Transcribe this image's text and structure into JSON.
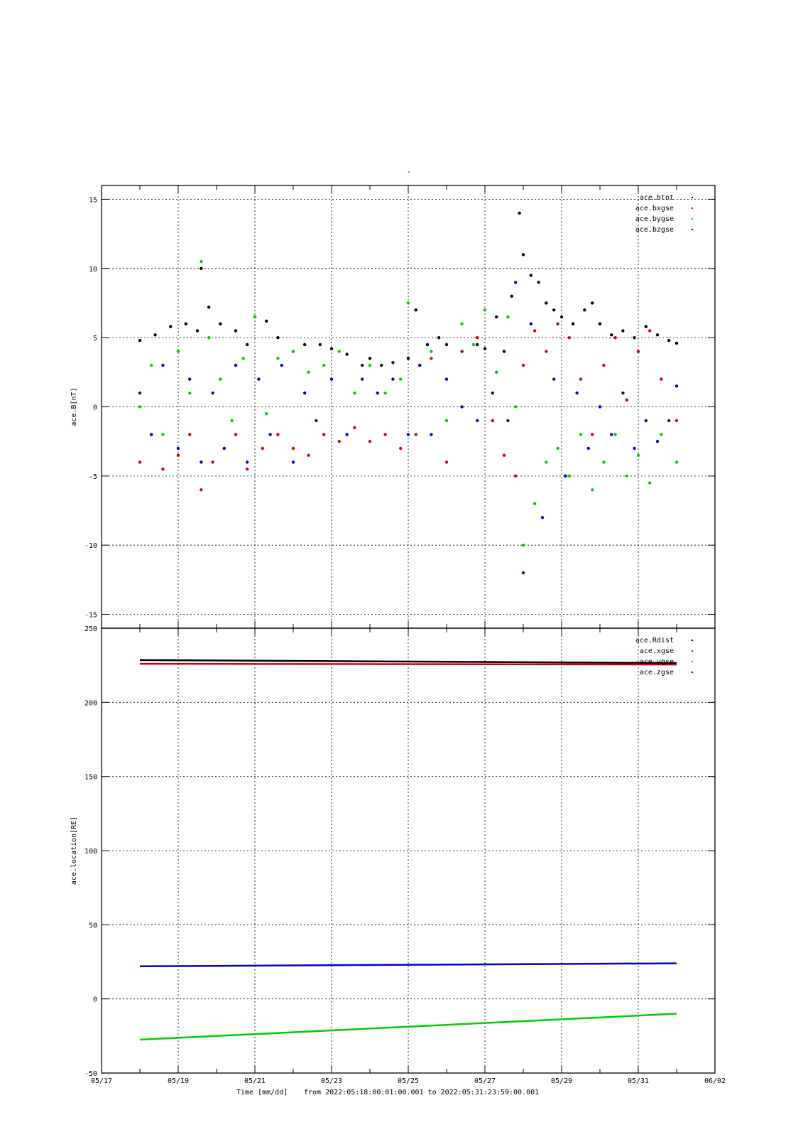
{
  "top_marker": "-",
  "footer": {
    "axis_label": "Time [mm/dd]",
    "range_text": "from 2022:05:18:00:01:00.001  to  2022:05:31:23:59:00.001"
  },
  "chart_data": [
    {
      "type": "scatter",
      "ylabel": "ace.B[nT]",
      "xlabel": "Time [mm/dd]",
      "x_unit": "days since 05/17",
      "xlim": [
        0,
        16
      ],
      "ylim": [
        -16,
        16
      ],
      "yticks": [
        15,
        10,
        5,
        0,
        -5,
        -10,
        -15
      ],
      "grid": true,
      "legend_position": "top-right",
      "series": [
        {
          "name": "ace.btot",
          "color": "#000000",
          "x": [
            1.0,
            1.4,
            1.8,
            2.2,
            2.5,
            2.6,
            2.8,
            3.1,
            3.5,
            3.8,
            4.0,
            4.3,
            4.6,
            5.0,
            5.3,
            5.7,
            6.0,
            6.4,
            6.8,
            7.0,
            7.3,
            7.6,
            8.0,
            8.2,
            8.5,
            8.8,
            9.0,
            9.4,
            9.8,
            10.0,
            10.3,
            10.5,
            10.7,
            10.9,
            11.0,
            11.2,
            11.4,
            11.6,
            11.8,
            12.0,
            12.3,
            12.6,
            12.8,
            13.0,
            13.3,
            13.6,
            13.9,
            14.2,
            14.5,
            14.8,
            15.0
          ],
          "y": [
            4.8,
            5.2,
            5.8,
            6.0,
            5.5,
            10.0,
            7.2,
            6.0,
            5.5,
            4.5,
            6.5,
            6.2,
            5.0,
            4.0,
            4.5,
            4.5,
            4.2,
            3.8,
            3.0,
            3.5,
            3.0,
            3.2,
            3.5,
            7.0,
            4.5,
            5.0,
            4.5,
            4.0,
            4.5,
            4.2,
            6.5,
            4.0,
            8.0,
            14.0,
            11.0,
            9.5,
            9.0,
            7.5,
            7.0,
            6.5,
            6.0,
            7.0,
            7.5,
            6.0,
            5.2,
            5.5,
            5.0,
            5.8,
            5.2,
            4.8,
            4.6
          ]
        },
        {
          "name": "ace.bxgse",
          "color": "#d40000",
          "x": [
            1.0,
            1.3,
            1.6,
            2.0,
            2.3,
            2.6,
            2.9,
            3.2,
            3.5,
            3.8,
            4.2,
            4.6,
            5.0,
            5.4,
            5.8,
            6.2,
            6.6,
            7.0,
            7.4,
            7.8,
            8.2,
            8.6,
            9.0,
            9.4,
            9.8,
            10.2,
            10.5,
            10.8,
            11.0,
            11.3,
            11.6,
            11.9,
            12.2,
            12.5,
            12.8,
            13.1,
            13.4,
            13.7,
            14.0,
            14.3,
            14.6,
            15.0
          ],
          "y": [
            -4.0,
            -2.0,
            -4.5,
            -3.5,
            -2.0,
            -6.0,
            -4.0,
            -3.0,
            -2.0,
            -4.5,
            -3.0,
            -2.0,
            -3.0,
            -3.5,
            -2.0,
            -2.5,
            -1.5,
            -2.5,
            -2.0,
            -3.0,
            -2.0,
            3.5,
            -4.0,
            4.0,
            5.0,
            -1.0,
            -3.5,
            -5.0,
            3.0,
            5.5,
            4.0,
            6.0,
            5.0,
            2.0,
            -2.0,
            3.0,
            5.0,
            0.5,
            4.0,
            5.5,
            2.0,
            -1.0
          ]
        },
        {
          "name": "ace.bygse",
          "color": "#00cc00",
          "x": [
            1.0,
            1.3,
            1.6,
            2.0,
            2.3,
            2.6,
            2.8,
            3.1,
            3.4,
            3.7,
            4.0,
            4.3,
            4.6,
            5.0,
            5.4,
            5.8,
            6.2,
            6.6,
            7.0,
            7.4,
            7.8,
            8.0,
            8.3,
            8.6,
            9.0,
            9.4,
            9.7,
            10.0,
            10.3,
            10.6,
            10.8,
            11.0,
            11.3,
            11.6,
            11.9,
            12.2,
            12.5,
            12.8,
            13.1,
            13.4,
            13.7,
            14.0,
            14.3,
            14.6,
            15.0
          ],
          "y": [
            0.0,
            3.0,
            -2.0,
            4.0,
            1.0,
            10.5,
            5.0,
            2.0,
            -1.0,
            3.5,
            6.5,
            -0.5,
            3.5,
            4.0,
            2.5,
            3.0,
            4.0,
            1.0,
            3.0,
            1.0,
            2.0,
            7.5,
            3.0,
            4.0,
            -1.0,
            6.0,
            4.5,
            7.0,
            2.5,
            6.5,
            0.0,
            -10.0,
            -7.0,
            -4.0,
            -3.0,
            -5.0,
            -2.0,
            -6.0,
            -4.0,
            -2.0,
            -5.0,
            -3.5,
            -5.5,
            -2.0,
            -4.0
          ]
        },
        {
          "name": "ace.bzgse",
          "color": "#0000cc",
          "x": [
            1.0,
            1.3,
            1.6,
            2.0,
            2.3,
            2.6,
            2.9,
            3.2,
            3.5,
            3.8,
            4.1,
            4.4,
            4.7,
            5.0,
            5.3,
            5.6,
            6.0,
            6.4,
            6.8,
            7.2,
            7.6,
            8.0,
            8.3,
            8.6,
            9.0,
            9.4,
            9.8,
            10.2,
            10.6,
            10.8,
            11.0,
            11.2,
            11.5,
            11.8,
            12.1,
            12.4,
            12.7,
            13.0,
            13.3,
            13.6,
            13.9,
            14.2,
            14.5,
            14.8,
            15.0
          ],
          "y": [
            1.0,
            -2.0,
            3.0,
            -3.0,
            2.0,
            -4.0,
            1.0,
            -3.0,
            3.0,
            -4.0,
            2.0,
            -2.0,
            3.0,
            -4.0,
            1.0,
            -1.0,
            2.0,
            -2.0,
            2.0,
            1.0,
            2.0,
            -2.0,
            3.0,
            -2.0,
            2.0,
            0.0,
            -1.0,
            1.0,
            -1.0,
            9.0,
            -12.0,
            6.0,
            -8.0,
            2.0,
            -5.0,
            1.0,
            -3.0,
            0.0,
            -2.0,
            1.0,
            -3.0,
            -1.0,
            -2.5,
            -1.0,
            1.5
          ]
        }
      ]
    },
    {
      "type": "line",
      "ylabel": "ace.location[RE]",
      "xlabel": "Time [mm/dd]",
      "x_unit": "days since 05/17",
      "xlim": [
        0,
        16
      ],
      "ylim": [
        -50,
        250
      ],
      "yticks": [
        250,
        200,
        150,
        100,
        50,
        0,
        -50
      ],
      "grid": true,
      "legend_position": "top-right",
      "xtick_labels": [
        "05/17",
        "05/19",
        "05/21",
        "05/23",
        "05/25",
        "05/27",
        "05/29",
        "05/31",
        "06/02"
      ],
      "xtick_values": [
        0,
        2,
        4,
        6,
        8,
        10,
        12,
        14,
        16
      ],
      "series": [
        {
          "name": "ace.Rdist",
          "color": "#000000",
          "x": [
            1.0,
            15.0
          ],
          "y": [
            228.5,
            226.5
          ]
        },
        {
          "name": "ace.xgse",
          "color": "#d40000",
          "x": [
            1.0,
            15.0
          ],
          "y": [
            226.0,
            225.5
          ]
        },
        {
          "name": "ace.ygse",
          "color": "#00cc00",
          "x": [
            1.0,
            15.0
          ],
          "y": [
            -27.5,
            -10.0
          ]
        },
        {
          "name": "ace.zgse",
          "color": "#0000cc",
          "x": [
            1.0,
            15.0
          ],
          "y": [
            22.0,
            24.0
          ]
        }
      ]
    }
  ]
}
